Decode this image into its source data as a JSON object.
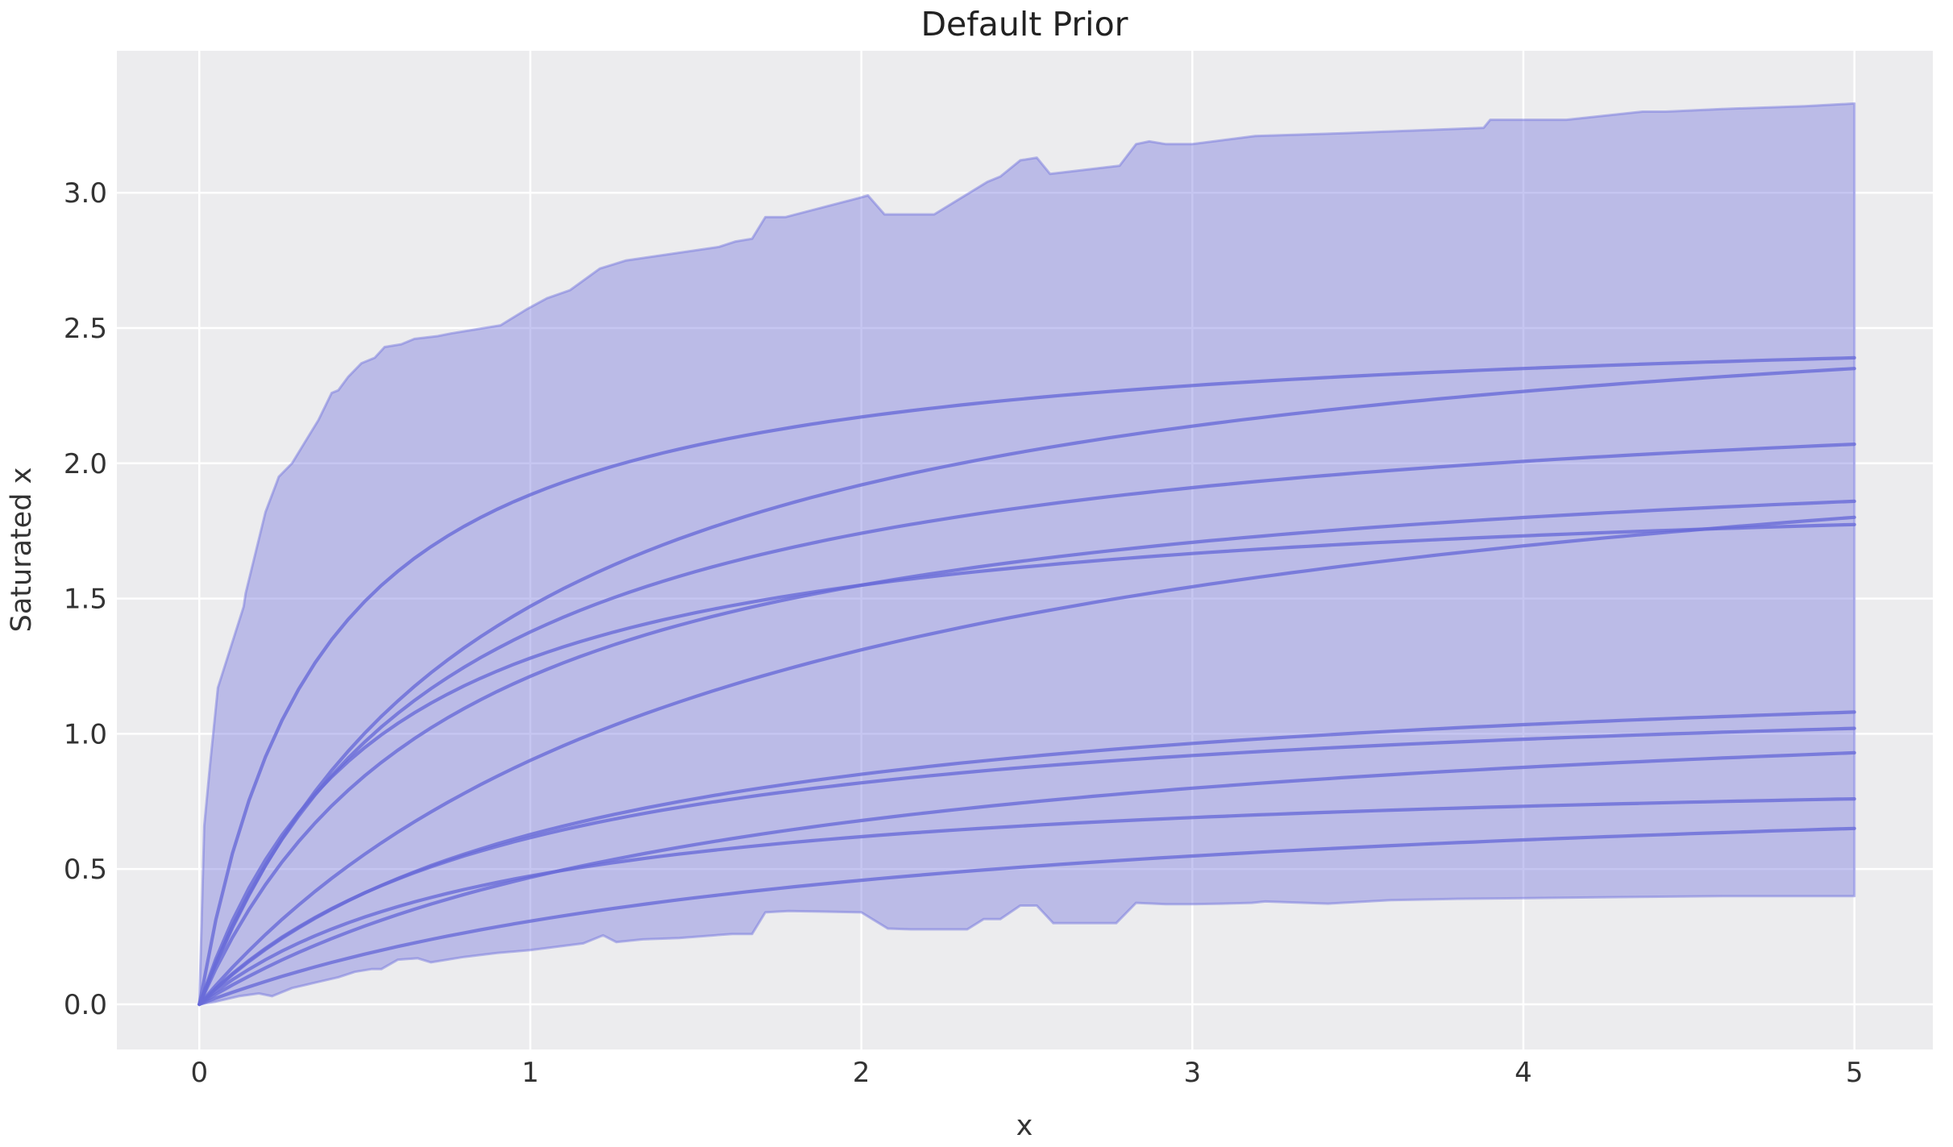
{
  "chart_data": {
    "type": "line",
    "title": "Default Prior",
    "xlabel": "x",
    "ylabel": "Saturated x",
    "grid": true,
    "legend_position": "none",
    "xlim": [
      -0.249,
      5.237
    ],
    "ylim": [
      -0.167,
      3.525
    ],
    "x_ticks": {
      "values": [
        0,
        1,
        2,
        3,
        4,
        5
      ],
      "labels": [
        "0",
        "1",
        "2",
        "3",
        "4",
        "5"
      ]
    },
    "y_ticks": {
      "values": [
        0,
        0.5,
        1,
        1.5,
        2,
        2.5,
        3
      ],
      "labels": [
        "0.0",
        "0.5",
        "1.0",
        "1.5",
        "2.0",
        "2.5",
        "3.0"
      ]
    },
    "band": {
      "description": "prior predictive envelope (filled region between lower and upper bounds)",
      "top": [
        [
          0,
          0
        ],
        [
          0.015,
          0.66
        ],
        [
          0.032,
          0.88
        ],
        [
          0.056,
          1.17
        ],
        [
          0.134,
          1.47
        ],
        [
          0.14,
          1.52
        ],
        [
          0.2,
          1.82
        ],
        [
          0.234,
          1.93
        ],
        [
          0.24,
          1.95
        ],
        [
          0.28,
          2.0
        ],
        [
          0.32,
          2.08
        ],
        [
          0.36,
          2.16
        ],
        [
          0.4,
          2.26
        ],
        [
          0.42,
          2.27
        ],
        [
          0.45,
          2.32
        ],
        [
          0.49,
          2.37
        ],
        [
          0.53,
          2.39
        ],
        [
          0.56,
          2.43
        ],
        [
          0.61,
          2.44
        ],
        [
          0.65,
          2.46
        ],
        [
          0.72,
          2.47
        ],
        [
          0.76,
          2.48
        ],
        [
          0.91,
          2.51
        ],
        [
          0.99,
          2.57
        ],
        [
          1.05,
          2.61
        ],
        [
          1.12,
          2.64
        ],
        [
          1.21,
          2.72
        ],
        [
          1.29,
          2.75
        ],
        [
          1.57,
          2.8
        ],
        [
          1.62,
          2.82
        ],
        [
          1.67,
          2.83
        ],
        [
          1.71,
          2.91
        ],
        [
          1.77,
          2.91
        ],
        [
          1.99,
          2.98
        ],
        [
          2.02,
          2.99
        ],
        [
          2.07,
          2.92
        ],
        [
          2.22,
          2.92
        ],
        [
          2.38,
          3.04
        ],
        [
          2.42,
          3.06
        ],
        [
          2.48,
          3.12
        ],
        [
          2.53,
          3.13
        ],
        [
          2.57,
          3.07
        ],
        [
          2.78,
          3.1
        ],
        [
          2.83,
          3.18
        ],
        [
          2.87,
          3.19
        ],
        [
          2.92,
          3.18
        ],
        [
          3.0,
          3.18
        ],
        [
          3.19,
          3.21
        ],
        [
          3.45,
          3.22
        ],
        [
          3.88,
          3.24
        ],
        [
          3.9,
          3.27
        ],
        [
          4.13,
          3.27
        ],
        [
          4.36,
          3.3
        ],
        [
          4.43,
          3.3
        ],
        [
          4.6,
          3.31
        ],
        [
          4.85,
          3.32
        ],
        [
          5,
          3.33
        ]
      ],
      "bottom": [
        [
          0,
          0
        ],
        [
          0.05,
          0.01
        ],
        [
          0.12,
          0.03
        ],
        [
          0.18,
          0.04
        ],
        [
          0.22,
          0.03
        ],
        [
          0.28,
          0.06
        ],
        [
          0.35,
          0.08
        ],
        [
          0.42,
          0.1
        ],
        [
          0.47,
          0.12
        ],
        [
          0.52,
          0.13
        ],
        [
          0.55,
          0.13
        ],
        [
          0.6,
          0.165
        ],
        [
          0.66,
          0.17
        ],
        [
          0.7,
          0.155
        ],
        [
          0.8,
          0.175
        ],
        [
          0.9,
          0.19
        ],
        [
          1.0,
          0.2
        ],
        [
          1.16,
          0.225
        ],
        [
          1.22,
          0.255
        ],
        [
          1.26,
          0.23
        ],
        [
          1.34,
          0.24
        ],
        [
          1.45,
          0.245
        ],
        [
          1.61,
          0.26
        ],
        [
          1.67,
          0.26
        ],
        [
          1.71,
          0.34
        ],
        [
          1.78,
          0.345
        ],
        [
          2.0,
          0.34
        ],
        [
          2.08,
          0.28
        ],
        [
          2.15,
          0.277
        ],
        [
          2.32,
          0.277
        ],
        [
          2.37,
          0.315
        ],
        [
          2.42,
          0.315
        ],
        [
          2.48,
          0.365
        ],
        [
          2.53,
          0.365
        ],
        [
          2.58,
          0.3
        ],
        [
          2.77,
          0.3
        ],
        [
          2.83,
          0.375
        ],
        [
          2.92,
          0.37
        ],
        [
          3.0,
          0.37
        ],
        [
          3.09,
          0.372
        ],
        [
          3.18,
          0.375
        ],
        [
          3.22,
          0.38
        ],
        [
          3.41,
          0.372
        ],
        [
          3.6,
          0.385
        ],
        [
          3.8,
          0.39
        ],
        [
          4.2,
          0.395
        ],
        [
          4.6,
          0.4
        ],
        [
          5,
          0.4
        ]
      ]
    },
    "curves": {
      "description": "sampled saturation curves, y = a*x/(x+k), x from 0 to 5",
      "x_range": [
        0,
        5
      ],
      "params": [
        {
          "a": 2.562,
          "k": 0.36
        },
        {
          "a": 2.763,
          "k": 0.878
        },
        {
          "a": 2.369,
          "k": 0.721
        },
        {
          "a": 2.146,
          "k": 0.77
        },
        {
          "a": 2.398,
          "k": 1.66
        },
        {
          "a": 1.963,
          "k": 0.534
        },
        {
          "a": 1.318,
          "k": 1.1
        },
        {
          "a": 1.22,
          "k": 0.98
        },
        {
          "a": 1.233,
          "k": 1.63
        },
        {
          "a": 0.894,
          "k": 0.885
        },
        {
          "a": 0.901,
          "k": 1.93
        }
      ],
      "values_at_x5": [
        2.39,
        2.35,
        2.07,
        1.86,
        1.8,
        1.77,
        1.08,
        1.02,
        0.93,
        0.76,
        0.65
      ]
    },
    "colors": {
      "line": "#696BD8",
      "band_fill": "#7678DD",
      "band_fill_opacity": 0.42,
      "band_edge_opacity": 0.5,
      "line_opacity": 0.8,
      "plot_background": "#ECECEE",
      "gridline": "#FFFFFF",
      "tick_text": "#333333",
      "title_text": "#222222"
    }
  }
}
